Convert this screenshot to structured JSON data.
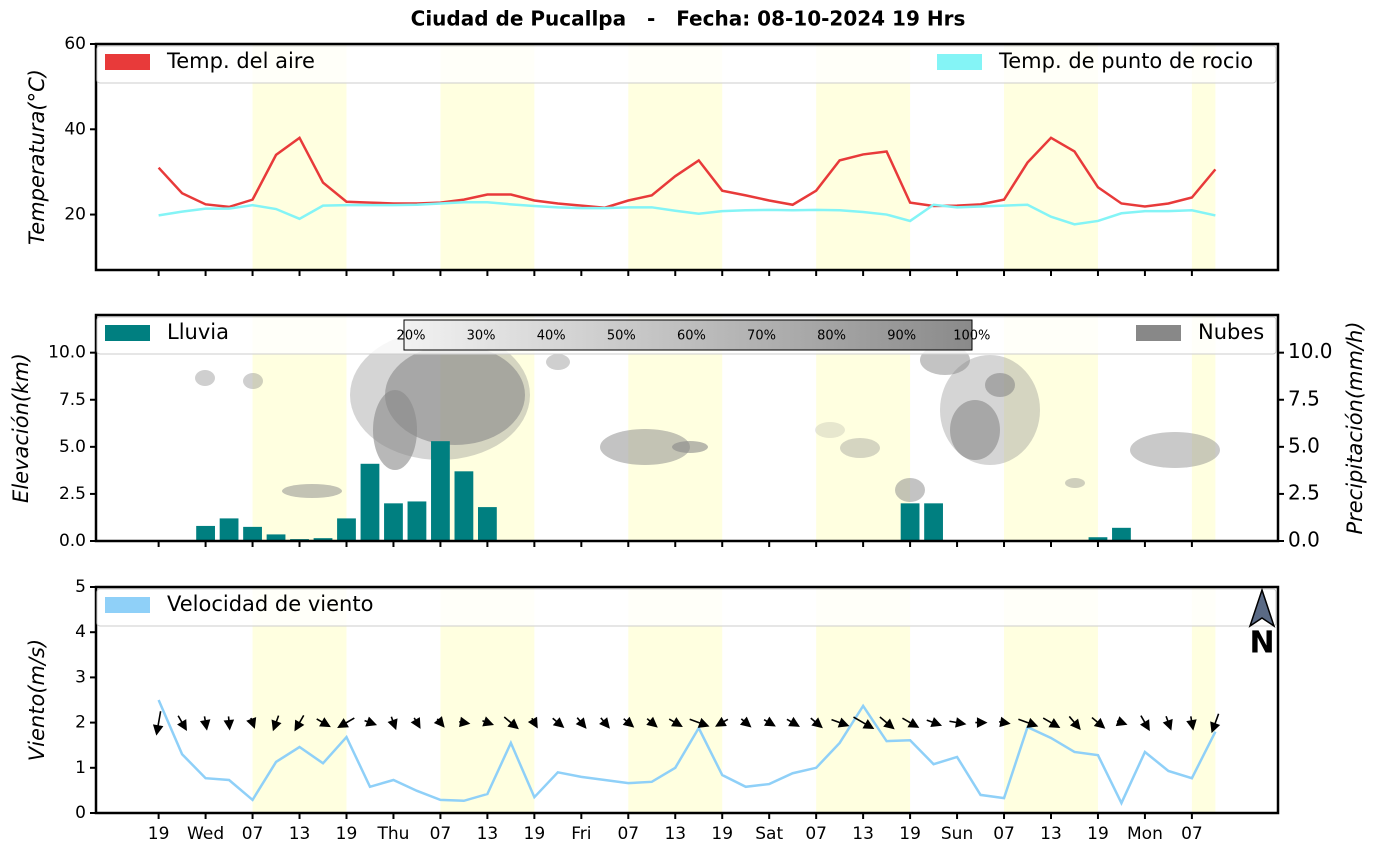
{
  "title": "Ciudad de Pucallpa   -   Fecha: 08-10-2024 19 Hrs",
  "daytime_shading": [
    [
      12,
      24
    ],
    [
      36,
      48
    ],
    [
      60,
      72
    ],
    [
      84,
      96
    ],
    [
      108,
      120
    ],
    [
      132,
      135
    ]
  ],
  "chart_data": [
    {
      "type": "line",
      "ylabel": "Temperatura(°C)",
      "x": [
        0,
        3,
        6,
        9,
        12,
        15,
        18,
        21,
        24,
        27,
        30,
        33,
        36,
        39,
        42,
        45,
        48,
        51,
        54,
        57,
        60,
        63,
        66,
        69,
        72,
        75,
        78,
        81,
        84,
        87,
        90,
        93,
        96,
        99,
        102,
        105,
        108,
        111,
        114,
        117,
        120,
        123,
        126,
        129,
        132,
        135
      ],
      "xlim": [
        -8,
        143
      ],
      "ylim": [
        7,
        60
      ],
      "yticks": [
        20,
        40,
        60
      ],
      "series": [
        {
          "name": "Temp. del aire",
          "color": "#e83a3a",
          "values": [
            31,
            25,
            22.4,
            21.8,
            23.5,
            34,
            38,
            27.5,
            23,
            22.8,
            22.6,
            22.6,
            22.8,
            23.5,
            24.7,
            24.7,
            23.3,
            22.6,
            22.1,
            21.6,
            23.3,
            24.5,
            29,
            32.7,
            25.6,
            24.5,
            23.3,
            22.3,
            25.6,
            32.7,
            34.1,
            34.8,
            22.8,
            22,
            22.1,
            22.4,
            23.5,
            32.2,
            38,
            34.8,
            26.4,
            22.6,
            21.9,
            22.6,
            24,
            30.6
          ]
        },
        {
          "name": "Temp. de punto de rocio",
          "color": "#84f4f6",
          "values": [
            19.8,
            20.7,
            21.4,
            21.4,
            22.2,
            21.3,
            19.0,
            22.1,
            22.2,
            22.2,
            22.2,
            22.3,
            22.6,
            22.9,
            22.9,
            22.4,
            22.0,
            21.7,
            21.5,
            21.5,
            21.7,
            21.7,
            20.9,
            20.2,
            20.8,
            21.0,
            21.1,
            21.0,
            21.1,
            21.0,
            20.6,
            20.0,
            18.5,
            22.3,
            21.7,
            21.9,
            22.1,
            22.3,
            19.5,
            17.7,
            18.5,
            20.3,
            20.8,
            20.8,
            21.0,
            19.8
          ]
        }
      ]
    },
    {
      "type": "bar",
      "ylabel": "Elevación(km)",
      "y2label": "Precipitación(mm/h)",
      "x": [
        0,
        3,
        6,
        9,
        12,
        15,
        18,
        21,
        24,
        27,
        30,
        33,
        36,
        39,
        42,
        45,
        48,
        51,
        54,
        57,
        60,
        63,
        66,
        69,
        72,
        75,
        78,
        81,
        84,
        87,
        90,
        93,
        96,
        99,
        102,
        105,
        108,
        111,
        114,
        117,
        120,
        123,
        126,
        129,
        132,
        135
      ],
      "xlim": [
        -8,
        143
      ],
      "ylim": [
        0,
        12
      ],
      "y2lim": [
        0,
        12
      ],
      "yticks": [
        {
          "value": 0,
          "label": "0.0"
        },
        {
          "value": 2.5,
          "label": "2.5"
        },
        {
          "value": 5,
          "label": "5.0"
        },
        {
          "value": 7.5,
          "label": "7.5"
        },
        {
          "value": 10,
          "label": "10.0"
        }
      ],
      "y2ticks": [
        {
          "value": 0,
          "label": "0.0"
        },
        {
          "value": 2.5,
          "label": "2.5"
        },
        {
          "value": 5,
          "label": "5.0"
        },
        {
          "value": 7.5,
          "label": "7.5"
        },
        {
          "value": 10,
          "label": "10.0"
        }
      ],
      "cloud_cover_scale": [
        "20%",
        "30%",
        "40%",
        "50%",
        "60%",
        "70%",
        "80%",
        "90%",
        "100%"
      ],
      "series": [
        {
          "name": "Lluvia",
          "color": "#007f80",
          "axis": "y2",
          "values": [
            0,
            0.05,
            0.8,
            1.2,
            0.75,
            0.35,
            0.1,
            0.15,
            1.2,
            4.1,
            2.0,
            2.1,
            5.3,
            3.7,
            1.8,
            0,
            0,
            0,
            0,
            0,
            0,
            0,
            0,
            0,
            0,
            0,
            0,
            0,
            0,
            0,
            0,
            0,
            2.0,
            2.0,
            0,
            0,
            0,
            0,
            0,
            0,
            0.2,
            0.7,
            0,
            0,
            0,
            0
          ]
        },
        {
          "name": "Nubes",
          "color": "#888888"
        }
      ]
    },
    {
      "type": "line",
      "ylabel": "Viento(m/s)",
      "x": [
        0,
        3,
        6,
        9,
        12,
        15,
        18,
        21,
        24,
        27,
        30,
        33,
        36,
        39,
        42,
        45,
        48,
        51,
        54,
        57,
        60,
        63,
        66,
        69,
        72,
        75,
        78,
        81,
        84,
        87,
        90,
        93,
        96,
        99,
        102,
        105,
        108,
        111,
        114,
        117,
        120,
        123,
        126,
        129,
        132,
        135
      ],
      "xlim": [
        -8,
        143
      ],
      "ylim": [
        0,
        5
      ],
      "yticks": [
        0,
        1,
        2,
        3,
        4,
        5
      ],
      "xticks": [
        {
          "value": 0,
          "label": "19"
        },
        {
          "value": 6,
          "label": "Wed"
        },
        {
          "value": 12,
          "label": "07"
        },
        {
          "value": 18,
          "label": "13"
        },
        {
          "value": 24,
          "label": "19"
        },
        {
          "value": 30,
          "label": "Thu"
        },
        {
          "value": 36,
          "label": "07"
        },
        {
          "value": 42,
          "label": "13"
        },
        {
          "value": 48,
          "label": "19"
        },
        {
          "value": 54,
          "label": "Fri"
        },
        {
          "value": 60,
          "label": "07"
        },
        {
          "value": 66,
          "label": "13"
        },
        {
          "value": 72,
          "label": "19"
        },
        {
          "value": 78,
          "label": "Sat"
        },
        {
          "value": 84,
          "label": "07"
        },
        {
          "value": 90,
          "label": "13"
        },
        {
          "value": 96,
          "label": "19"
        },
        {
          "value": 102,
          "label": "Sun"
        },
        {
          "value": 108,
          "label": "07"
        },
        {
          "value": 114,
          "label": "13"
        },
        {
          "value": 120,
          "label": "19"
        },
        {
          "value": 126,
          "label": "Mon"
        },
        {
          "value": 132,
          "label": "07"
        }
      ],
      "north_label": "N",
      "wind_direction": [
        190,
        150,
        170,
        175,
        160,
        200,
        210,
        120,
        240,
        110,
        160,
        150,
        140,
        100,
        110,
        130,
        150,
        130,
        140,
        140,
        130,
        130,
        120,
        110,
        240,
        130,
        120,
        120,
        130,
        110,
        120,
        130,
        120,
        110,
        100,
        90,
        100,
        110,
        120,
        140,
        130,
        110,
        150,
        160,
        170,
        200
      ],
      "series": [
        {
          "name": "Velocidad de viento",
          "color": "#8fd0f8",
          "values": [
            2.5,
            1.3,
            0.77,
            0.73,
            0.29,
            1.13,
            1.46,
            1.1,
            1.68,
            0.58,
            0.73,
            0.49,
            0.29,
            0.27,
            0.42,
            1.55,
            0.35,
            0.9,
            0.8,
            0.73,
            0.66,
            0.69,
            1.0,
            1.88,
            0.84,
            0.58,
            0.64,
            0.88,
            1.0,
            1.55,
            2.37,
            1.59,
            1.61,
            1.08,
            1.24,
            0.4,
            0.33,
            1.9,
            1.66,
            1.35,
            1.28,
            0.22,
            1.35,
            0.93,
            0.77,
            1.8
          ]
        }
      ]
    }
  ]
}
